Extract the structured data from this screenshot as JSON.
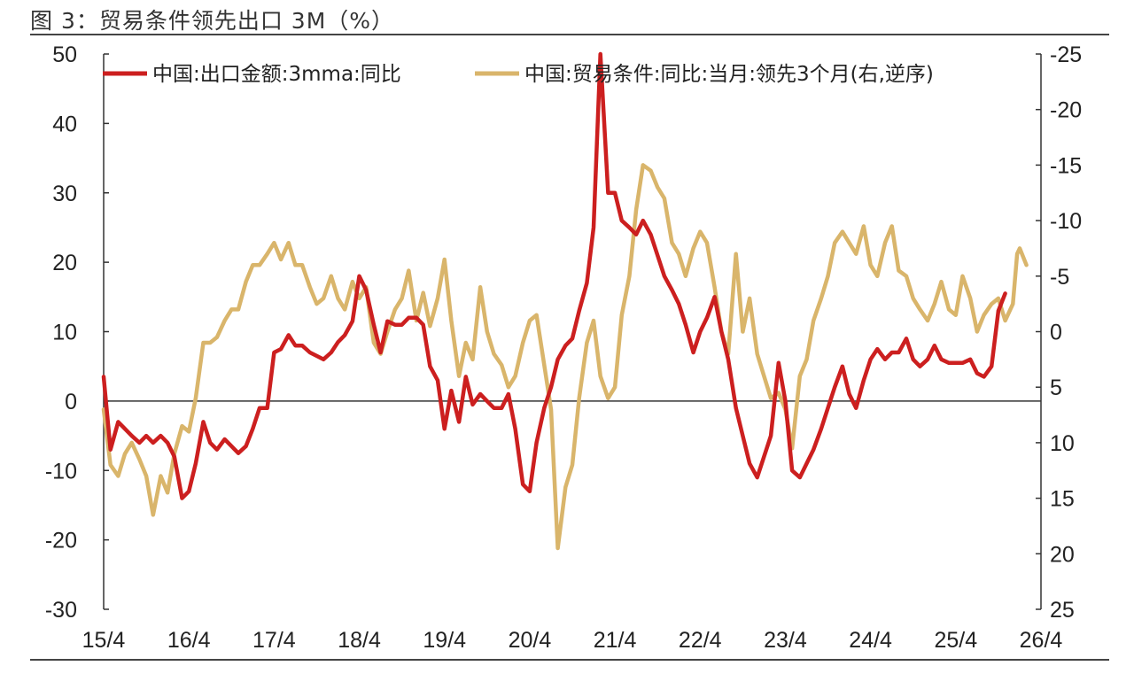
{
  "title": "图 3：贸易条件领先出口 3M（%）",
  "colors": {
    "red_series": "#cc1f1f",
    "gold_series": "#d9b56b",
    "axis": "#333333"
  },
  "chart_data": {
    "type": "line",
    "title": "图 3：贸易条件领先出口 3M（%）",
    "x_tick_labels": [
      "15/4",
      "16/4",
      "17/4",
      "18/4",
      "19/4",
      "20/4",
      "21/4",
      "22/4",
      "23/4",
      "24/4",
      "25/4",
      "26/4"
    ],
    "x_range": [
      2015.25,
      2026.25
    ],
    "y_left": {
      "range": [
        -30,
        50
      ],
      "ticks": [
        50,
        40,
        30,
        20,
        10,
        0,
        -10,
        -20,
        -30
      ]
    },
    "y_right": {
      "range": [
        -25,
        25
      ],
      "reversed": true,
      "ticks": [
        -25,
        -20,
        -15,
        -10,
        -5,
        0,
        5,
        10,
        15,
        20,
        25
      ]
    },
    "grid": false,
    "zero_line": true,
    "legend_position": "top",
    "series": [
      {
        "name": "中国:出口金额:3mma:同比",
        "axis": "left",
        "color": "#cc1f1f",
        "points": [
          [
            2015.25,
            3.5
          ],
          [
            2015.33,
            -7
          ],
          [
            2015.42,
            -3
          ],
          [
            2015.5,
            -4
          ],
          [
            2015.58,
            -5
          ],
          [
            2015.67,
            -6
          ],
          [
            2015.75,
            -5
          ],
          [
            2015.83,
            -6
          ],
          [
            2015.92,
            -5
          ],
          [
            2016.0,
            -6
          ],
          [
            2016.08,
            -8
          ],
          [
            2016.17,
            -14
          ],
          [
            2016.25,
            -13
          ],
          [
            2016.33,
            -9
          ],
          [
            2016.42,
            -3
          ],
          [
            2016.5,
            -6
          ],
          [
            2016.58,
            -7
          ],
          [
            2016.67,
            -5.5
          ],
          [
            2016.75,
            -6.5
          ],
          [
            2016.83,
            -7.5
          ],
          [
            2016.92,
            -6.5
          ],
          [
            2017.0,
            -4
          ],
          [
            2017.08,
            -1
          ],
          [
            2017.17,
            -1
          ],
          [
            2017.25,
            7
          ],
          [
            2017.33,
            7.5
          ],
          [
            2017.42,
            9.5
          ],
          [
            2017.5,
            8
          ],
          [
            2017.58,
            8
          ],
          [
            2017.67,
            7
          ],
          [
            2017.75,
            6.5
          ],
          [
            2017.83,
            6
          ],
          [
            2017.92,
            7
          ],
          [
            2018.0,
            8.5
          ],
          [
            2018.08,
            9.5
          ],
          [
            2018.17,
            11.5
          ],
          [
            2018.25,
            18
          ],
          [
            2018.33,
            16
          ],
          [
            2018.42,
            11
          ],
          [
            2018.5,
            7
          ],
          [
            2018.58,
            11.5
          ],
          [
            2018.67,
            11
          ],
          [
            2018.75,
            11
          ],
          [
            2018.83,
            12
          ],
          [
            2018.92,
            12
          ],
          [
            2019.0,
            11
          ],
          [
            2019.08,
            5
          ],
          [
            2019.17,
            3
          ],
          [
            2019.25,
            -4
          ],
          [
            2019.33,
            1.5
          ],
          [
            2019.42,
            -3
          ],
          [
            2019.5,
            3.5
          ],
          [
            2019.58,
            -0.5
          ],
          [
            2019.67,
            1
          ],
          [
            2019.75,
            0
          ],
          [
            2019.83,
            -1
          ],
          [
            2019.92,
            -1
          ],
          [
            2020.0,
            1
          ],
          [
            2020.08,
            -4
          ],
          [
            2020.17,
            -12
          ],
          [
            2020.25,
            -13
          ],
          [
            2020.33,
            -6
          ],
          [
            2020.42,
            -1
          ],
          [
            2020.5,
            2
          ],
          [
            2020.58,
            6
          ],
          [
            2020.67,
            8
          ],
          [
            2020.75,
            9
          ],
          [
            2020.83,
            13
          ],
          [
            2020.92,
            17
          ],
          [
            2021.0,
            25
          ],
          [
            2021.08,
            50
          ],
          [
            2021.17,
            30
          ],
          [
            2021.25,
            30
          ],
          [
            2021.33,
            26
          ],
          [
            2021.42,
            25
          ],
          [
            2021.5,
            24
          ],
          [
            2021.58,
            26
          ],
          [
            2021.67,
            24
          ],
          [
            2021.75,
            21
          ],
          [
            2021.83,
            18
          ],
          [
            2021.92,
            16
          ],
          [
            2022.0,
            14
          ],
          [
            2022.08,
            11
          ],
          [
            2022.17,
            7
          ],
          [
            2022.25,
            10
          ],
          [
            2022.33,
            12
          ],
          [
            2022.42,
            15
          ],
          [
            2022.5,
            10
          ],
          [
            2022.58,
            6
          ],
          [
            2022.67,
            -1
          ],
          [
            2022.75,
            -5
          ],
          [
            2022.83,
            -9
          ],
          [
            2022.92,
            -11
          ],
          [
            2023.0,
            -8
          ],
          [
            2023.08,
            -5
          ],
          [
            2023.17,
            5.5
          ],
          [
            2023.25,
            0
          ],
          [
            2023.33,
            -10
          ],
          [
            2023.42,
            -11
          ],
          [
            2023.5,
            -9
          ],
          [
            2023.58,
            -7
          ],
          [
            2023.67,
            -4
          ],
          [
            2023.75,
            -1
          ],
          [
            2023.83,
            2
          ],
          [
            2023.92,
            5
          ],
          [
            2024.0,
            1
          ],
          [
            2024.08,
            -1
          ],
          [
            2024.17,
            3
          ],
          [
            2024.25,
            6
          ],
          [
            2024.33,
            7.5
          ],
          [
            2024.42,
            6
          ],
          [
            2024.5,
            7
          ],
          [
            2024.58,
            7
          ],
          [
            2024.67,
            9
          ],
          [
            2024.75,
            6
          ],
          [
            2024.83,
            5
          ],
          [
            2024.92,
            6
          ],
          [
            2025.0,
            8
          ],
          [
            2025.08,
            6
          ],
          [
            2025.17,
            5.5
          ],
          [
            2025.25,
            5.5
          ],
          [
            2025.33,
            5.5
          ],
          [
            2025.42,
            6
          ],
          [
            2025.5,
            4
          ],
          [
            2025.58,
            3.5
          ],
          [
            2025.67,
            5
          ],
          [
            2025.75,
            13
          ],
          [
            2025.83,
            15.5
          ]
        ]
      },
      {
        "name": "中国:贸易条件:同比:当月:领先3个月(右,逆序)",
        "axis": "right",
        "color": "#d9b56b",
        "points": [
          [
            2015.25,
            7
          ],
          [
            2015.33,
            12
          ],
          [
            2015.42,
            13
          ],
          [
            2015.5,
            11
          ],
          [
            2015.58,
            10
          ],
          [
            2015.67,
            11.5
          ],
          [
            2015.75,
            13
          ],
          [
            2015.83,
            16.5
          ],
          [
            2015.92,
            13
          ],
          [
            2016.0,
            14.5
          ],
          [
            2016.08,
            11
          ],
          [
            2016.17,
            8.5
          ],
          [
            2016.25,
            9
          ],
          [
            2016.33,
            6
          ],
          [
            2016.42,
            1
          ],
          [
            2016.5,
            1
          ],
          [
            2016.58,
            0.5
          ],
          [
            2016.67,
            -1
          ],
          [
            2016.75,
            -2
          ],
          [
            2016.83,
            -2
          ],
          [
            2016.92,
            -4.5
          ],
          [
            2017.0,
            -6
          ],
          [
            2017.08,
            -6
          ],
          [
            2017.17,
            -7
          ],
          [
            2017.25,
            -8
          ],
          [
            2017.33,
            -6.5
          ],
          [
            2017.42,
            -8
          ],
          [
            2017.5,
            -6
          ],
          [
            2017.58,
            -6
          ],
          [
            2017.67,
            -4
          ],
          [
            2017.75,
            -2.5
          ],
          [
            2017.83,
            -3
          ],
          [
            2017.92,
            -5
          ],
          [
            2018.0,
            -3
          ],
          [
            2018.08,
            -2
          ],
          [
            2018.17,
            -4.5
          ],
          [
            2018.25,
            -3
          ],
          [
            2018.33,
            -4
          ],
          [
            2018.42,
            1
          ],
          [
            2018.5,
            2
          ],
          [
            2018.58,
            0
          ],
          [
            2018.67,
            -2
          ],
          [
            2018.75,
            -3
          ],
          [
            2018.83,
            -5.5
          ],
          [
            2018.92,
            -1
          ],
          [
            2019.0,
            -3.5
          ],
          [
            2019.08,
            -0.5
          ],
          [
            2019.17,
            -3
          ],
          [
            2019.25,
            -6.5
          ],
          [
            2019.33,
            -1
          ],
          [
            2019.42,
            4
          ],
          [
            2019.5,
            1
          ],
          [
            2019.58,
            2.5
          ],
          [
            2019.67,
            -4
          ],
          [
            2019.75,
            0
          ],
          [
            2019.83,
            2
          ],
          [
            2019.92,
            3
          ],
          [
            2020.0,
            5
          ],
          [
            2020.08,
            4
          ],
          [
            2020.17,
            1
          ],
          [
            2020.25,
            -1
          ],
          [
            2020.33,
            -1.5
          ],
          [
            2020.42,
            3
          ],
          [
            2020.5,
            7
          ],
          [
            2020.58,
            19.5
          ],
          [
            2020.67,
            14
          ],
          [
            2020.75,
            12
          ],
          [
            2020.83,
            6
          ],
          [
            2020.92,
            1
          ],
          [
            2021.0,
            -1
          ],
          [
            2021.08,
            4
          ],
          [
            2021.17,
            6
          ],
          [
            2021.25,
            5
          ],
          [
            2021.33,
            -1.5
          ],
          [
            2021.42,
            -5
          ],
          [
            2021.5,
            -11
          ],
          [
            2021.58,
            -15
          ],
          [
            2021.67,
            -14.5
          ],
          [
            2021.75,
            -13
          ],
          [
            2021.83,
            -12
          ],
          [
            2021.92,
            -8
          ],
          [
            2022.0,
            -7
          ],
          [
            2022.08,
            -5
          ],
          [
            2022.17,
            -7.5
          ],
          [
            2022.25,
            -9
          ],
          [
            2022.33,
            -8
          ],
          [
            2022.42,
            -4
          ],
          [
            2022.5,
            0
          ],
          [
            2022.58,
            2
          ],
          [
            2022.67,
            -7
          ],
          [
            2022.75,
            0
          ],
          [
            2022.83,
            -3
          ],
          [
            2022.92,
            2
          ],
          [
            2023.0,
            4
          ],
          [
            2023.08,
            6
          ],
          [
            2023.17,
            5.5
          ],
          [
            2023.25,
            7
          ],
          [
            2023.33,
            10.5
          ],
          [
            2023.42,
            4
          ],
          [
            2023.5,
            2.5
          ],
          [
            2023.58,
            -1
          ],
          [
            2023.67,
            -3
          ],
          [
            2023.75,
            -5
          ],
          [
            2023.83,
            -8
          ],
          [
            2023.92,
            -9
          ],
          [
            2024.0,
            -8
          ],
          [
            2024.08,
            -7
          ],
          [
            2024.17,
            -9.5
          ],
          [
            2024.25,
            -6
          ],
          [
            2024.33,
            -5
          ],
          [
            2024.42,
            -8
          ],
          [
            2024.5,
            -9.5
          ],
          [
            2024.58,
            -5.5
          ],
          [
            2024.67,
            -5
          ],
          [
            2024.75,
            -3
          ],
          [
            2024.83,
            -2
          ],
          [
            2024.92,
            -1
          ],
          [
            2025.0,
            -2.5
          ],
          [
            2025.08,
            -4.5
          ],
          [
            2025.17,
            -2
          ],
          [
            2025.25,
            -1.5
          ],
          [
            2025.33,
            -5
          ],
          [
            2025.42,
            -3
          ],
          [
            2025.5,
            0
          ],
          [
            2025.58,
            -1.5
          ],
          [
            2025.67,
            -2.5
          ],
          [
            2025.75,
            -3
          ],
          [
            2025.83,
            -1
          ],
          [
            2025.92,
            -2.5
          ],
          [
            2025.97,
            -7
          ],
          [
            2026.0,
            -7.5
          ],
          [
            2026.08,
            -6
          ]
        ]
      }
    ]
  }
}
